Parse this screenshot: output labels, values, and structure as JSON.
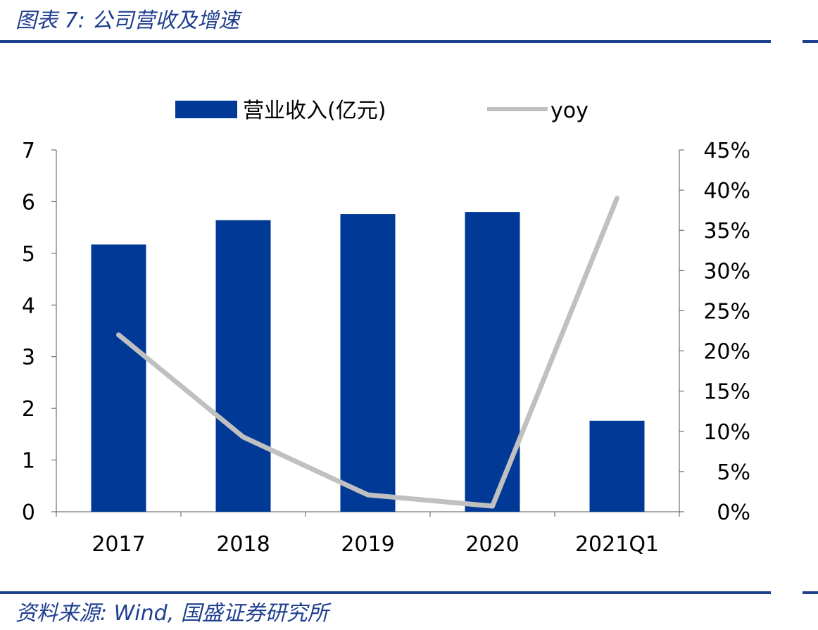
{
  "figure": {
    "title": "图表 7:  公司营收及增速",
    "source": "资料来源:  Wind, 国盛证券研究所"
  },
  "colors": {
    "bar": "#003a96",
    "line": "#c0c0c0",
    "rule": "#1f3f8f",
    "axis": "#555555",
    "text": "#000000"
  },
  "chart_data": {
    "type": "bar",
    "categories": [
      "2017",
      "2018",
      "2019",
      "2020",
      "2021Q1"
    ],
    "series": [
      {
        "name": "营业收入(亿元)",
        "type": "bar",
        "axis": "left",
        "values": [
          5.17,
          5.64,
          5.76,
          5.8,
          1.76
        ]
      },
      {
        "name": "yoy",
        "type": "line",
        "axis": "right",
        "values": [
          0.22,
          0.093,
          0.021,
          0.007,
          0.39
        ]
      }
    ],
    "y_left": {
      "lim": [
        0,
        7
      ],
      "ticks": [
        0,
        1,
        2,
        3,
        4,
        5,
        6,
        7
      ]
    },
    "y_right": {
      "lim": [
        0,
        0.45
      ],
      "ticks": [
        0,
        0.05,
        0.1,
        0.15,
        0.2,
        0.25,
        0.3,
        0.35,
        0.4,
        0.45
      ],
      "tick_labels": [
        "0%",
        "5%",
        "10%",
        "15%",
        "20%",
        "25%",
        "30%",
        "35%",
        "40%",
        "45%"
      ]
    },
    "legend": {
      "position": "top",
      "labels": [
        "营业收入(亿元)",
        "yoy"
      ]
    },
    "grid": false
  }
}
